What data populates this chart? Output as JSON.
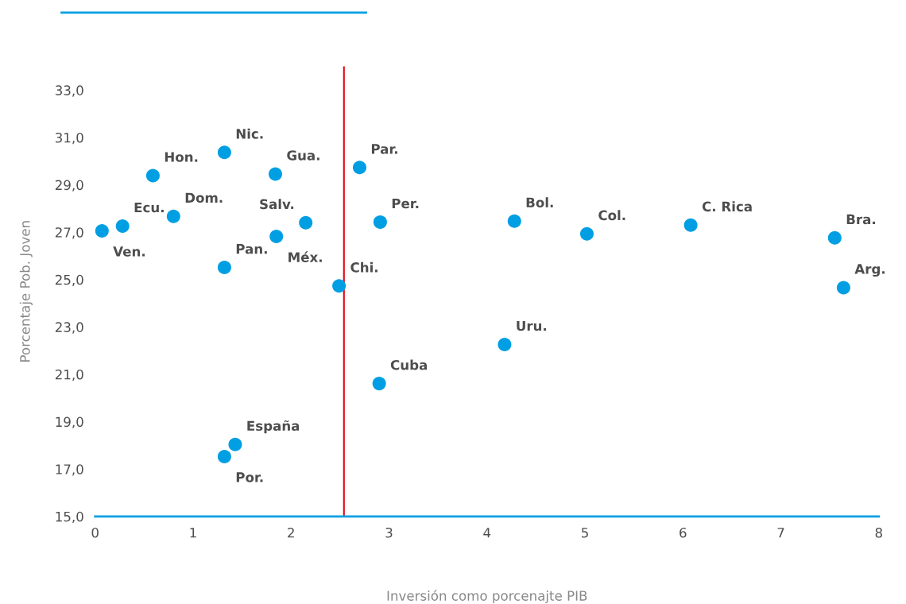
{
  "chart_data": {
    "type": "scatter",
    "xlabel": "Inversión como porcenajte PIB",
    "ylabel": "Porcentaje Pob. Joven",
    "x": [
      0.07,
      0.28,
      0.59,
      0.8,
      1.32,
      1.32,
      1.84,
      1.85,
      2.15,
      2.49,
      2.7,
      2.91,
      2.9,
      1.43,
      1.32,
      4.28,
      4.18,
      5.02,
      6.08,
      7.55,
      7.64
    ],
    "series": [
      {
        "color": "#009fe3",
        "values": [
          27.06,
          27.26,
          29.39,
          27.67,
          30.37,
          25.51,
          29.46,
          26.82,
          27.4,
          24.73,
          29.73,
          27.43,
          20.61,
          18.04,
          17.53,
          27.47,
          22.26,
          26.93,
          27.3,
          26.76,
          24.66
        ]
      }
    ],
    "annotations": [
      {
        "text": "Ven.",
        "x": 0.07,
        "y": 27.06
      },
      {
        "text": "Ecu.",
        "x": 0.28,
        "y": 27.26
      },
      {
        "text": "Hon.",
        "x": 0.59,
        "y": 29.39
      },
      {
        "text": "Dom.",
        "x": 0.8,
        "y": 27.67
      },
      {
        "text": "Nic.",
        "x": 1.32,
        "y": 30.37
      },
      {
        "text": "Pan.",
        "x": 1.32,
        "y": 25.51
      },
      {
        "text": "Gua.",
        "x": 1.84,
        "y": 29.46
      },
      {
        "text": "Méx.",
        "x": 1.85,
        "y": 26.82
      },
      {
        "text": "Salv.",
        "x": 2.15,
        "y": 27.4
      },
      {
        "text": "Chi.",
        "x": 2.49,
        "y": 24.73
      },
      {
        "text": "Par.",
        "x": 2.7,
        "y": 29.73
      },
      {
        "text": "Per.",
        "x": 2.91,
        "y": 27.43
      },
      {
        "text": "Cuba",
        "x": 2.9,
        "y": 20.61
      },
      {
        "text": "España",
        "x": 1.43,
        "y": 18.04
      },
      {
        "text": "Por.",
        "x": 1.32,
        "y": 17.53
      },
      {
        "text": "Bol.",
        "x": 4.28,
        "y": 27.47
      },
      {
        "text": "Uru.",
        "x": 4.18,
        "y": 22.26
      },
      {
        "text": "Col.",
        "x": 5.02,
        "y": 26.93
      },
      {
        "text": "C. Rica",
        "x": 6.08,
        "y": 27.3
      },
      {
        "text": "Bra.",
        "x": 7.55,
        "y": 26.76
      },
      {
        "text": "Arg.",
        "x": 7.64,
        "y": 24.66
      }
    ],
    "ref_lines": [
      {
        "axis": "x",
        "value": 2.54,
        "color": "#e30613"
      }
    ],
    "xlim": [
      0,
      8
    ],
    "ylim": [
      15,
      34
    ],
    "xticks": [
      0,
      1,
      2,
      3,
      4,
      5,
      6,
      7,
      8
    ],
    "yticks": [
      {
        "value": 15,
        "label": "15,0"
      },
      {
        "value": 17,
        "label": "17,0"
      },
      {
        "value": 19,
        "label": "19,0"
      },
      {
        "value": 21,
        "label": "21,0"
      },
      {
        "value": 23,
        "label": "23,0"
      },
      {
        "value": 25,
        "label": "25,0"
      },
      {
        "value": 27,
        "label": "27,0"
      },
      {
        "value": 29,
        "label": "29,0"
      },
      {
        "value": 31,
        "label": "31,0"
      },
      {
        "value": 33,
        "label": "33,0"
      }
    ],
    "grid": false,
    "marker": "circle"
  }
}
